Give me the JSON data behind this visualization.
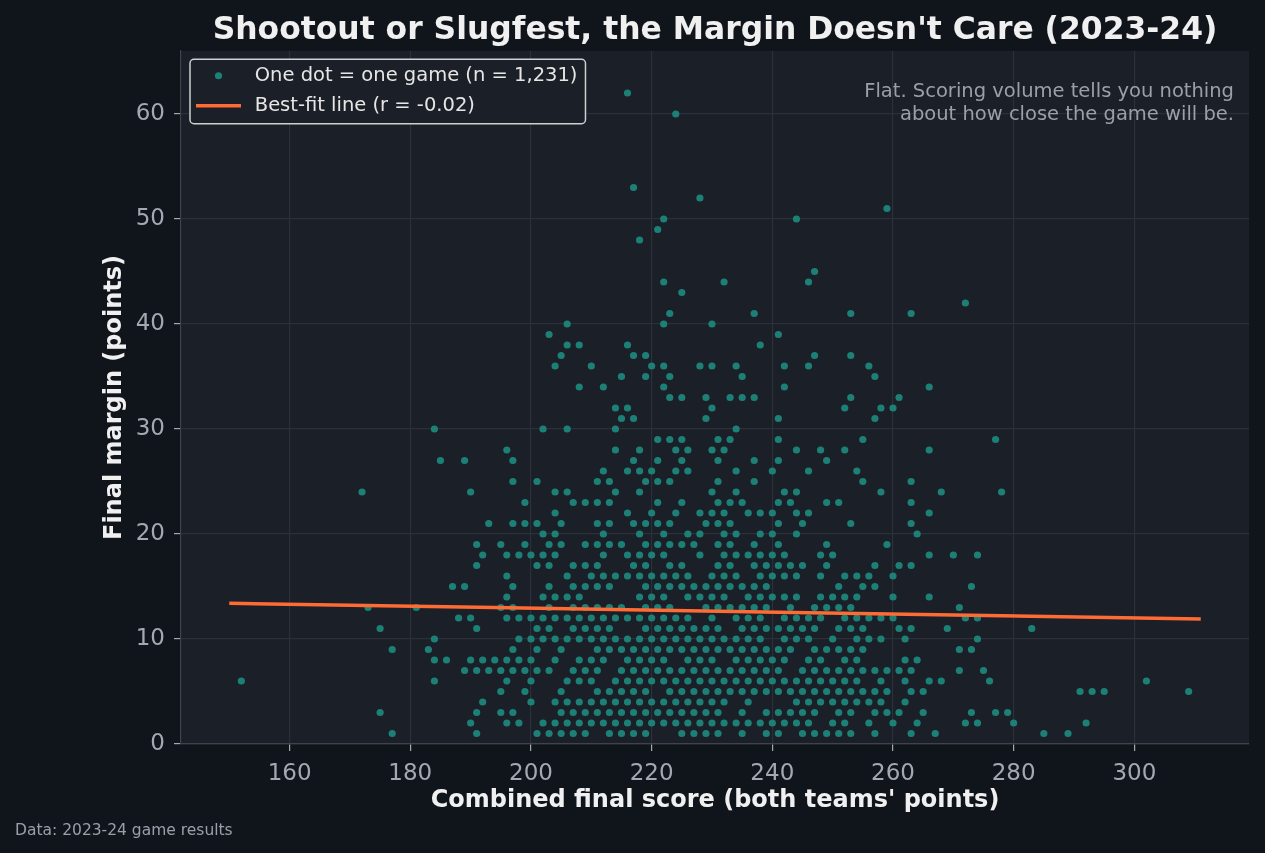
{
  "chart_data": {
    "type": "scatter",
    "title": "Shootout or Slugfest, the Margin Doesn't Care (2023-24)",
    "xlabel": "Combined final score (both teams' points)",
    "ylabel": "Final margin (points)",
    "annotations": [
      "Flat. Scoring volume tells you nothing about how close the game will be.",
      "Data: 2023-24 game results"
    ],
    "xlim": [
      142,
      319
    ],
    "ylim": [
      0,
      66
    ],
    "xticks": [
      160,
      180,
      200,
      220,
      240,
      260,
      280,
      300
    ],
    "yticks": [
      0,
      10,
      20,
      30,
      40,
      50,
      60
    ],
    "grid": true,
    "legend": "top left",
    "marker": "circle",
    "series": [
      {
        "type": "scatter",
        "name": "One dot = one game (n = 1,231)",
        "color": "#1d8077",
        "x": [
          216,
          224,
          217,
          228,
          259,
          222,
          244,
          221,
          218,
          247,
          222,
          232,
          246,
          225,
          272,
          223,
          237,
          253,
          263,
          206,
          222,
          230,
          203,
          241,
          206,
          208,
          216,
          238,
          205,
          217,
          219,
          247,
          253,
          204,
          210,
          220,
          222,
          228,
          230,
          234,
          242,
          246,
          256,
          215,
          219,
          223,
          235,
          257,
          208,
          212,
          222,
          242,
          266,
          223,
          225,
          229,
          233,
          235,
          237,
          253,
          261,
          214,
          216,
          230,
          252,
          258,
          260,
          215,
          217,
          229,
          241,
          257,
          184,
          202,
          206,
          214,
          234,
          221,
          223,
          225,
          231,
          233,
          241,
          255,
          277,
          196,
          214,
          218,
          224,
          226,
          230,
          232,
          244,
          248,
          252,
          266,
          185,
          189,
          197,
          217,
          221,
          225,
          231,
          237,
          241,
          249,
          212,
          216,
          218,
          220,
          224,
          226,
          234,
          240,
          246,
          254,
          197,
          201,
          211,
          213,
          219,
          221,
          223,
          231,
          237,
          255,
          263,
          172,
          190,
          204,
          206,
          214,
          218,
          230,
          234,
          242,
          244,
          258,
          268,
          278,
          199,
          207,
          209,
          211,
          213,
          221,
          225,
          231,
          233,
          235,
          241,
          243,
          249,
          251,
          263,
          204,
          216,
          220,
          224,
          228,
          230,
          232,
          236,
          238,
          240,
          244,
          246,
          266,
          193,
          197,
          199,
          201,
          205,
          211,
          213,
          217,
          219,
          221,
          223,
          229,
          231,
          233,
          241,
          245,
          253,
          263,
          202,
          204,
          212,
          218,
          222,
          226,
          228,
          232,
          234,
          238,
          240,
          244,
          264,
          191,
          195,
          199,
          203,
          205,
          209,
          211,
          213,
          215,
          219,
          221,
          223,
          225,
          227,
          231,
          233,
          237,
          241,
          249,
          259,
          192,
          196,
          198,
          200,
          202,
          204,
          212,
          216,
          218,
          220,
          222,
          228,
          232,
          234,
          236,
          238,
          240,
          242,
          248,
          250,
          266,
          270,
          274,
          191,
          201,
          203,
          207,
          209,
          211,
          217,
          219,
          223,
          225,
          231,
          233,
          237,
          239,
          241,
          243,
          245,
          249,
          257,
          261,
          263,
          196,
          206,
          210,
          212,
          214,
          216,
          218,
          220,
          222,
          224,
          226,
          230,
          232,
          234,
          238,
          240,
          242,
          244,
          248,
          252,
          254,
          256,
          260,
          187,
          189,
          197,
          203,
          207,
          209,
          211,
          213,
          219,
          221,
          223,
          225,
          227,
          229,
          231,
          233,
          235,
          237,
          239,
          251,
          255,
          257,
          273,
          196,
          202,
          204,
          206,
          208,
          218,
          220,
          222,
          226,
          228,
          230,
          232,
          236,
          238,
          240,
          242,
          244,
          248,
          250,
          252,
          254,
          260,
          266,
          173,
          181,
          195,
          197,
          203,
          207,
          209,
          211,
          213,
          215,
          219,
          221,
          223,
          229,
          231,
          233,
          235,
          237,
          239,
          243,
          247,
          249,
          251,
          253,
          271,
          188,
          190,
          196,
          198,
          200,
          202,
          204,
          206,
          208,
          210,
          212,
          214,
          216,
          218,
          220,
          222,
          224,
          226,
          230,
          234,
          236,
          238,
          242,
          244,
          246,
          248,
          252,
          254,
          256,
          258,
          260,
          272,
          274,
          175,
          191,
          201,
          203,
          207,
          209,
          211,
          213,
          219,
          221,
          223,
          225,
          227,
          229,
          231,
          235,
          237,
          239,
          241,
          243,
          245,
          247,
          251,
          253,
          255,
          261,
          263,
          269,
          283,
          184,
          198,
          200,
          202,
          204,
          206,
          208,
          210,
          212,
          214,
          216,
          218,
          220,
          222,
          224,
          226,
          228,
          230,
          232,
          234,
          236,
          238,
          242,
          244,
          246,
          250,
          254,
          256,
          258,
          262,
          274,
          177,
          183,
          197,
          201,
          205,
          211,
          213,
          215,
          217,
          219,
          221,
          223,
          225,
          227,
          229,
          231,
          233,
          235,
          237,
          239,
          241,
          243,
          247,
          249,
          251,
          253,
          255,
          271,
          273,
          184,
          186,
          190,
          192,
          194,
          196,
          198,
          200,
          204,
          208,
          210,
          212,
          216,
          218,
          220,
          222,
          226,
          228,
          230,
          234,
          236,
          238,
          240,
          242,
          246,
          248,
          252,
          254,
          262,
          264,
          189,
          191,
          193,
          195,
          197,
          199,
          201,
          203,
          207,
          209,
          211,
          215,
          217,
          219,
          221,
          223,
          225,
          227,
          229,
          231,
          233,
          235,
          237,
          239,
          241,
          245,
          247,
          249,
          251,
          253,
          255,
          257,
          259,
          261,
          263,
          271,
          275,
          152,
          184,
          196,
          200,
          206,
          208,
          210,
          214,
          216,
          218,
          220,
          222,
          224,
          226,
          228,
          230,
          232,
          234,
          236,
          238,
          240,
          242,
          244,
          246,
          248,
          250,
          252,
          254,
          258,
          262,
          266,
          268,
          276,
          302,
          195,
          199,
          205,
          211,
          213,
          215,
          217,
          219,
          223,
          225,
          227,
          229,
          231,
          233,
          235,
          237,
          239,
          241,
          243,
          245,
          247,
          249,
          251,
          253,
          255,
          257,
          259,
          263,
          265,
          291,
          293,
          295,
          309,
          192,
          200,
          204,
          206,
          208,
          210,
          212,
          214,
          216,
          218,
          220,
          222,
          224,
          226,
          228,
          230,
          232,
          236,
          244,
          246,
          248,
          250,
          252,
          254,
          256,
          258,
          262,
          175,
          191,
          195,
          197,
          205,
          207,
          209,
          211,
          213,
          215,
          217,
          219,
          221,
          223,
          225,
          227,
          229,
          231,
          235,
          239,
          241,
          243,
          245,
          247,
          251,
          253,
          257,
          259,
          261,
          265,
          273,
          277,
          279,
          190,
          196,
          198,
          202,
          204,
          206,
          208,
          210,
          212,
          214,
          216,
          218,
          220,
          222,
          224,
          226,
          228,
          230,
          232,
          234,
          236,
          238,
          240,
          242,
          244,
          246,
          250,
          252,
          256,
          260,
          264,
          272,
          274,
          280,
          292,
          177,
          191,
          201,
          203,
          205,
          207,
          209,
          213,
          215,
          217,
          219,
          225,
          227,
          229,
          231,
          235,
          239,
          241,
          245,
          247,
          249,
          251,
          253,
          257,
          263,
          267,
          285,
          289
        ],
        "values": [
          62,
          60,
          53,
          52,
          51,
          50,
          50,
          49,
          48,
          45,
          44,
          44,
          44,
          43,
          42,
          41,
          41,
          41,
          41,
          40,
          40,
          40,
          39,
          39,
          38,
          38,
          38,
          38,
          37,
          37,
          37,
          37,
          37,
          36,
          36,
          36,
          36,
          36,
          36,
          36,
          36,
          36,
          36,
          35,
          35,
          35,
          35,
          35,
          34,
          34,
          34,
          34,
          34,
          33,
          33,
          33,
          33,
          33,
          33,
          33,
          33,
          32,
          32,
          32,
          32,
          32,
          32,
          31,
          31,
          31,
          31,
          31,
          30,
          30,
          30,
          30,
          30,
          29,
          29,
          29,
          29,
          29,
          29,
          29,
          29,
          28,
          28,
          28,
          28,
          28,
          28,
          28,
          28,
          28,
          28,
          28,
          27,
          27,
          27,
          27,
          27,
          27,
          27,
          27,
          27,
          27,
          26,
          26,
          26,
          26,
          26,
          26,
          26,
          26,
          26,
          26,
          25,
          25,
          25,
          25,
          25,
          25,
          25,
          25,
          25,
          25,
          25,
          24,
          24,
          24,
          24,
          24,
          24,
          24,
          24,
          24,
          24,
          24,
          24,
          24,
          23,
          23,
          23,
          23,
          23,
          23,
          23,
          23,
          23,
          23,
          23,
          23,
          23,
          23,
          23,
          22,
          22,
          22,
          22,
          22,
          22,
          22,
          22,
          22,
          22,
          22,
          22,
          22,
          21,
          21,
          21,
          21,
          21,
          21,
          21,
          21,
          21,
          21,
          21,
          21,
          21,
          21,
          21,
          21,
          21,
          21,
          20,
          20,
          20,
          20,
          20,
          20,
          20,
          20,
          20,
          20,
          20,
          20,
          20,
          19,
          19,
          19,
          19,
          19,
          19,
          19,
          19,
          19,
          19,
          19,
          19,
          19,
          19,
          19,
          19,
          19,
          19,
          19,
          19,
          18,
          18,
          18,
          18,
          18,
          18,
          18,
          18,
          18,
          18,
          18,
          18,
          18,
          18,
          18,
          18,
          18,
          18,
          18,
          18,
          18,
          18,
          18,
          17,
          17,
          17,
          17,
          17,
          17,
          17,
          17,
          17,
          17,
          17,
          17,
          17,
          17,
          17,
          17,
          17,
          17,
          17,
          17,
          17,
          16,
          16,
          16,
          16,
          16,
          16,
          16,
          16,
          16,
          16,
          16,
          16,
          16,
          16,
          16,
          16,
          16,
          16,
          16,
          16,
          16,
          16,
          16,
          15,
          15,
          15,
          15,
          15,
          15,
          15,
          15,
          15,
          15,
          15,
          15,
          15,
          15,
          15,
          15,
          15,
          15,
          15,
          15,
          15,
          15,
          15,
          14,
          14,
          14,
          14,
          14,
          14,
          14,
          14,
          14,
          14,
          14,
          14,
          14,
          14,
          14,
          14,
          14,
          14,
          14,
          14,
          14,
          14,
          14,
          13,
          13,
          13,
          13,
          13,
          13,
          13,
          13,
          13,
          13,
          13,
          13,
          13,
          13,
          13,
          13,
          13,
          13,
          13,
          13,
          13,
          13,
          13,
          13,
          13,
          12,
          12,
          12,
          12,
          12,
          12,
          12,
          12,
          12,
          12,
          12,
          12,
          12,
          12,
          12,
          12,
          12,
          12,
          12,
          12,
          12,
          12,
          12,
          12,
          12,
          12,
          12,
          12,
          12,
          12,
          12,
          12,
          12,
          11,
          11,
          11,
          11,
          11,
          11,
          11,
          11,
          11,
          11,
          11,
          11,
          11,
          11,
          11,
          11,
          11,
          11,
          11,
          11,
          11,
          11,
          11,
          11,
          11,
          11,
          11,
          11,
          11,
          10,
          10,
          10,
          10,
          10,
          10,
          10,
          10,
          10,
          10,
          10,
          10,
          10,
          10,
          10,
          10,
          10,
          10,
          10,
          10,
          10,
          10,
          10,
          10,
          10,
          10,
          10,
          10,
          10,
          10,
          10,
          9,
          9,
          9,
          9,
          9,
          9,
          9,
          9,
          9,
          9,
          9,
          9,
          9,
          9,
          9,
          9,
          9,
          9,
          9,
          9,
          9,
          9,
          9,
          9,
          9,
          9,
          9,
          9,
          9,
          8,
          8,
          8,
          8,
          8,
          8,
          8,
          8,
          8,
          8,
          8,
          8,
          8,
          8,
          8,
          8,
          8,
          8,
          8,
          8,
          8,
          8,
          8,
          8,
          8,
          8,
          8,
          8,
          8,
          8,
          7,
          7,
          7,
          7,
          7,
          7,
          7,
          7,
          7,
          7,
          7,
          7,
          7,
          7,
          7,
          7,
          7,
          7,
          7,
          7,
          7,
          7,
          7,
          7,
          7,
          7,
          7,
          7,
          7,
          7,
          7,
          7,
          7,
          7,
          7,
          7,
          7,
          6,
          6,
          6,
          6,
          6,
          6,
          6,
          6,
          6,
          6,
          6,
          6,
          6,
          6,
          6,
          6,
          6,
          6,
          6,
          6,
          6,
          6,
          6,
          6,
          6,
          6,
          6,
          6,
          6,
          6,
          6,
          6,
          6,
          6,
          5,
          5,
          5,
          5,
          5,
          5,
          5,
          5,
          5,
          5,
          5,
          5,
          5,
          5,
          5,
          5,
          5,
          5,
          5,
          5,
          5,
          5,
          5,
          5,
          5,
          5,
          5,
          5,
          5,
          5,
          5,
          5,
          5,
          4,
          4,
          4,
          4,
          4,
          4,
          4,
          4,
          4,
          4,
          4,
          4,
          4,
          4,
          4,
          4,
          4,
          4,
          4,
          4,
          4,
          4,
          4,
          4,
          4,
          4,
          4,
          3,
          3,
          3,
          3,
          3,
          3,
          3,
          3,
          3,
          3,
          3,
          3,
          3,
          3,
          3,
          3,
          3,
          3,
          3,
          3,
          3,
          3,
          3,
          3,
          3,
          3,
          3,
          3,
          3,
          3,
          3,
          3,
          3,
          2,
          2,
          2,
          2,
          2,
          2,
          2,
          2,
          2,
          2,
          2,
          2,
          2,
          2,
          2,
          2,
          2,
          2,
          2,
          2,
          2,
          2,
          2,
          2,
          2,
          2,
          2,
          2,
          2,
          2,
          2,
          2,
          2,
          2,
          2,
          1,
          1,
          1,
          1,
          1,
          1,
          1,
          1,
          1,
          1,
          1,
          1,
          1,
          1,
          1,
          1,
          1,
          1,
          1,
          1,
          1,
          1,
          1,
          1,
          1,
          1,
          1,
          1
        ]
      },
      {
        "type": "line",
        "name": "Best-fit line (r = -0.02)",
        "color": "#ff6b35",
        "marker": "none",
        "x": [
          150,
          311
        ],
        "values": [
          13.4,
          11.9
        ]
      }
    ]
  }
}
